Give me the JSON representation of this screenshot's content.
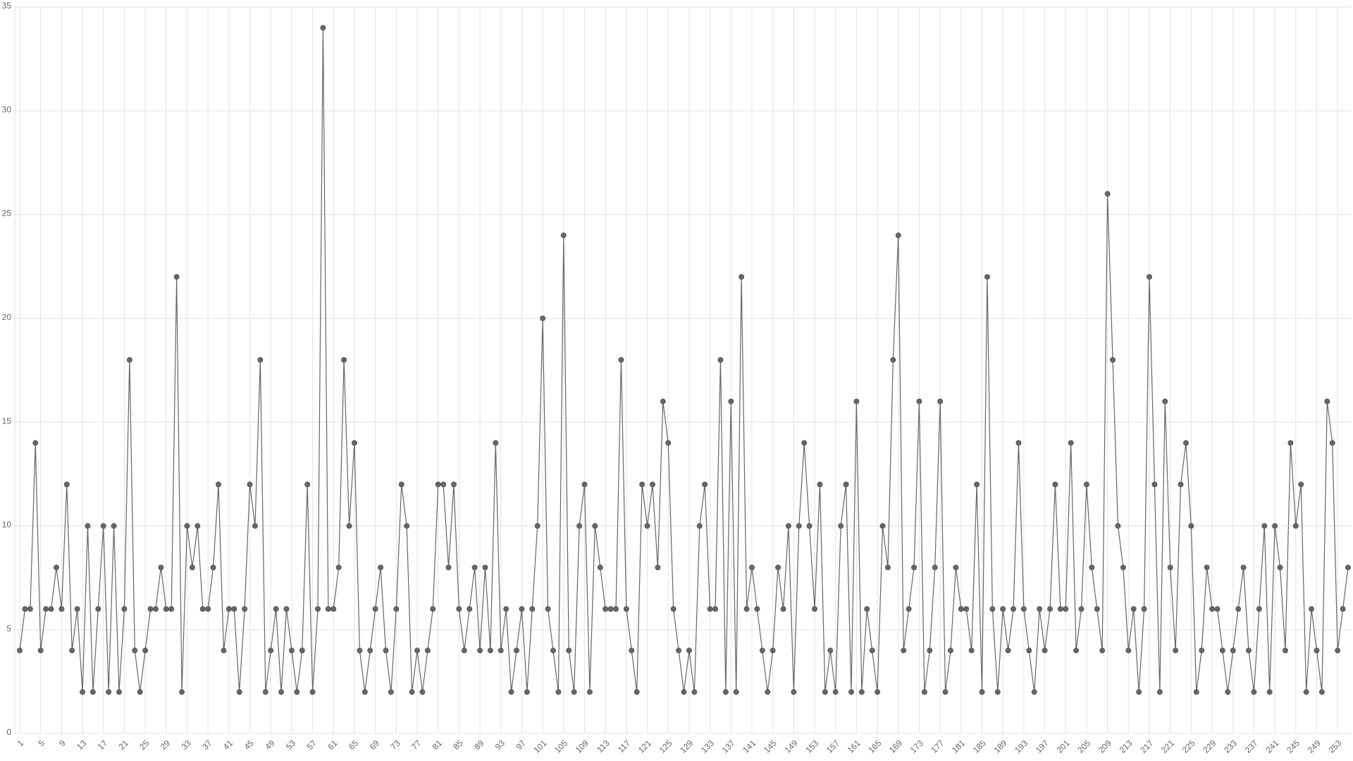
{
  "chart_data": {
    "type": "line",
    "categories": [
      1,
      null,
      null,
      null,
      5,
      null,
      null,
      null,
      9,
      null,
      null,
      null,
      13,
      null,
      null,
      null,
      17,
      null,
      null,
      null,
      21,
      null,
      null,
      null,
      25,
      null,
      null,
      null,
      29,
      null,
      null,
      null,
      33,
      null,
      null,
      null,
      37,
      null,
      null,
      null,
      41,
      null,
      null,
      null,
      45,
      null,
      null,
      null,
      49,
      null,
      null,
      null,
      53,
      null,
      null,
      null,
      57,
      null,
      null,
      null,
      61,
      null,
      null,
      null,
      65,
      null,
      null,
      null,
      69,
      null,
      null,
      null,
      73,
      null,
      null,
      null,
      77,
      null,
      null,
      null,
      81,
      null,
      null,
      null,
      85,
      null,
      null,
      null,
      89,
      null,
      null,
      null,
      93,
      null,
      null,
      null,
      97,
      null,
      null,
      null,
      101,
      null,
      null,
      null,
      105,
      null,
      null,
      null,
      109,
      null,
      null,
      null,
      113,
      null,
      null,
      null,
      117,
      null,
      null,
      null,
      121,
      null,
      null,
      null,
      125,
      null,
      null,
      null,
      129,
      null,
      null,
      null,
      133,
      null,
      null,
      null,
      137,
      null,
      null,
      null,
      141,
      null,
      null,
      null,
      145,
      null,
      null,
      null,
      149,
      null,
      null,
      null,
      153,
      null,
      null,
      null,
      157,
      null,
      null,
      null,
      161,
      null,
      null,
      null,
      165,
      null,
      null,
      null,
      169,
      null,
      null,
      null,
      173,
      null,
      null,
      null,
      177,
      null,
      null,
      null,
      181,
      null,
      null,
      null,
      185,
      null,
      null,
      null,
      189,
      null,
      null,
      null,
      193,
      null,
      null,
      null,
      197,
      null,
      null,
      null,
      201,
      null,
      null,
      null,
      205,
      null,
      null,
      null,
      209,
      null,
      null,
      null,
      213,
      null,
      null,
      null,
      217,
      null,
      null,
      null,
      221,
      null,
      null,
      null,
      225,
      null,
      null,
      null,
      229,
      null,
      null,
      null,
      233,
      null,
      null,
      null,
      237,
      null,
      null,
      null,
      241,
      null,
      null,
      null,
      245,
      null,
      null,
      null,
      249,
      null,
      null,
      null,
      253,
      null,
      null
    ],
    "values": [
      4,
      6,
      6,
      14,
      4,
      6,
      6,
      8,
      6,
      12,
      4,
      6,
      2,
      10,
      2,
      6,
      10,
      2,
      10,
      2,
      6,
      18,
      4,
      2,
      4,
      6,
      6,
      8,
      6,
      6,
      22,
      2,
      10,
      8,
      10,
      6,
      6,
      8,
      12,
      4,
      6,
      6,
      2,
      6,
      12,
      10,
      18,
      2,
      4,
      6,
      2,
      6,
      4,
      2,
      4,
      12,
      2,
      6,
      34,
      6,
      6,
      8,
      18,
      10,
      14,
      4,
      2,
      4,
      6,
      8,
      4,
      2,
      6,
      12,
      10,
      2,
      4,
      2,
      4,
      6,
      12,
      12,
      8,
      12,
      6,
      4,
      6,
      8,
      4,
      8,
      4,
      14,
      4,
      6,
      2,
      4,
      6,
      2,
      6,
      10,
      20,
      6,
      4,
      2,
      24,
      4,
      2,
      10,
      12,
      2,
      10,
      8,
      6,
      6,
      6,
      18,
      6,
      4,
      2,
      12,
      10,
      12,
      8,
      16,
      14,
      6,
      4,
      2,
      4,
      2,
      10,
      12,
      6,
      6,
      18,
      2,
      16,
      2,
      22,
      6,
      8,
      6,
      4,
      2,
      4,
      8,
      6,
      10,
      2,
      10,
      14,
      10,
      6,
      12,
      2,
      4,
      2,
      10,
      12,
      2,
      16,
      2,
      6,
      4,
      2,
      10,
      8,
      18,
      24,
      4,
      6,
      8,
      16,
      2,
      4,
      8,
      16,
      2,
      4,
      8,
      6,
      6,
      4,
      12,
      2,
      22,
      6,
      2,
      6,
      4,
      6,
      14,
      6,
      4,
      2,
      6,
      4,
      6,
      12,
      6,
      6,
      14,
      4,
      6,
      12,
      8,
      6,
      4,
      26,
      18,
      10,
      8,
      4,
      6,
      2,
      6,
      22,
      12,
      2,
      16,
      8,
      4,
      12,
      14,
      10,
      2,
      4,
      8,
      6,
      6,
      4,
      2,
      4,
      6,
      8,
      4,
      2,
      6,
      10,
      2,
      10,
      8,
      4,
      14,
      10,
      12,
      2,
      6,
      4,
      2,
      16,
      14,
      4,
      6,
      8
    ],
    "color": "#666666",
    "ylim": [
      0,
      35
    ],
    "yticks": [
      0,
      5,
      10,
      15,
      20,
      25,
      30,
      35
    ],
    "grid": true
  }
}
